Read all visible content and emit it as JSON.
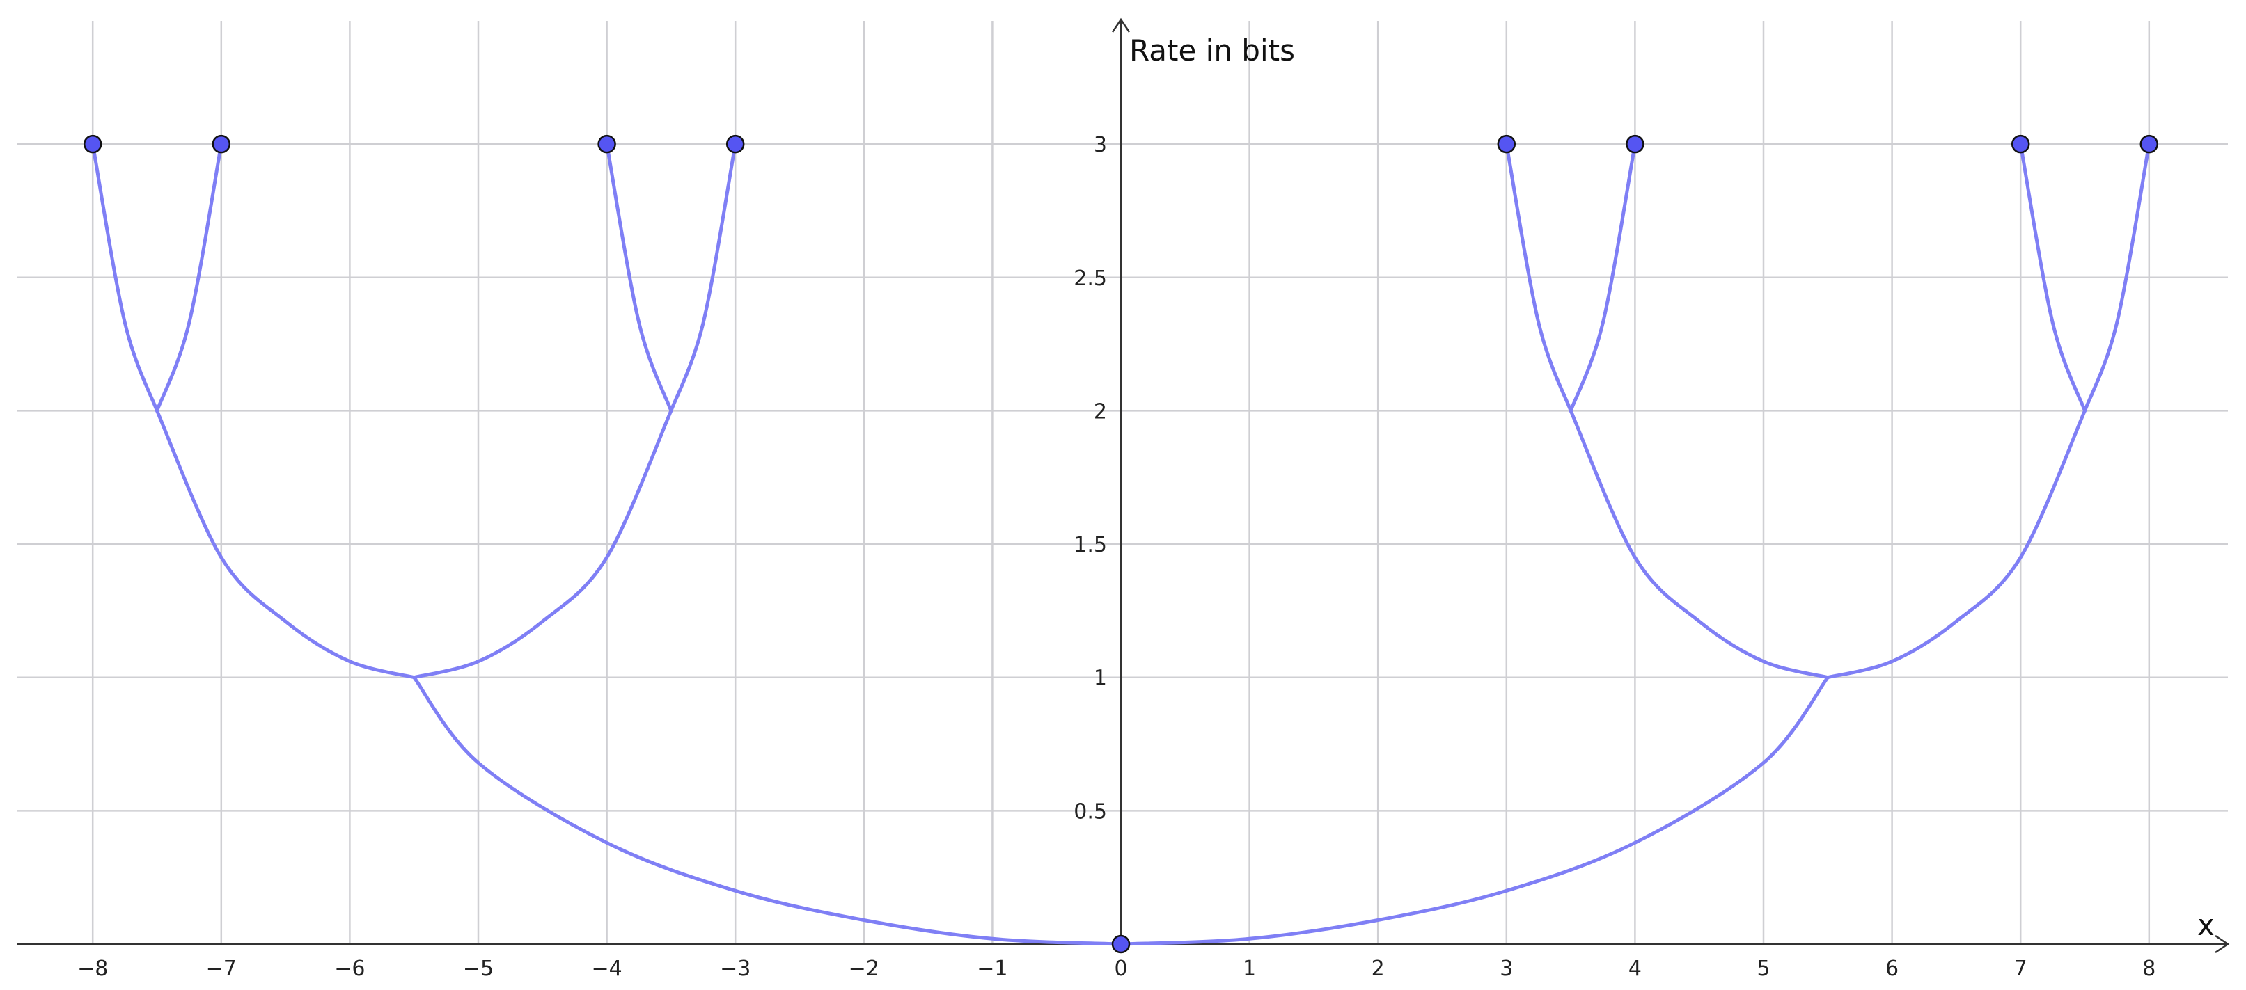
{
  "chart_data": {
    "type": "line",
    "title": "",
    "xlabel": "x",
    "ylabel": "Rate in bits",
    "xlim": [
      -8.6,
      8.6
    ],
    "ylim": [
      0,
      3.45
    ],
    "grid": true,
    "x_ticks": [
      -8,
      -7,
      -6,
      -5,
      -4,
      -3,
      -2,
      -1,
      0,
      1,
      2,
      3,
      4,
      5,
      6,
      7,
      8
    ],
    "x_tick_labels": [
      "−8",
      "−7",
      "−6",
      "−5",
      "−4",
      "−3",
      "−2",
      "−1",
      "0",
      "1",
      "2",
      "3",
      "4",
      "5",
      "6",
      "7",
      "8"
    ],
    "y_ticks": [
      0.5,
      1,
      1.5,
      2,
      2.5,
      3
    ],
    "y_tick_labels": [
      "0.5",
      "1",
      "1.5",
      "2",
      "2.5",
      "3"
    ],
    "series_color": "#7f7ff5",
    "point_color": "#5555f2",
    "points": [
      {
        "x": -8,
        "y": 3
      },
      {
        "x": -7,
        "y": 3
      },
      {
        "x": -4,
        "y": 3
      },
      {
        "x": -3,
        "y": 3
      },
      {
        "x": 3,
        "y": 3
      },
      {
        "x": 4,
        "y": 3
      },
      {
        "x": 7,
        "y": 3
      },
      {
        "x": 8,
        "y": 3
      },
      {
        "x": 0,
        "y": 0
      }
    ],
    "curves": [
      {
        "x": [
          0,
          -1,
          -2,
          -3,
          -4,
          -5,
          -5.5
        ],
        "y": [
          0,
          0.02,
          0.09,
          0.2,
          0.38,
          0.68,
          1
        ]
      },
      {
        "x": [
          0,
          1,
          2,
          3,
          4,
          5,
          5.5
        ],
        "y": [
          0,
          0.02,
          0.09,
          0.2,
          0.38,
          0.68,
          1
        ]
      },
      {
        "x": [
          -5.5,
          -6,
          -6.5,
          -7,
          -7.5
        ],
        "y": [
          1,
          1.06,
          1.21,
          1.45,
          2
        ]
      },
      {
        "x": [
          -5.5,
          -5,
          -4.5,
          -4,
          -3.5
        ],
        "y": [
          1,
          1.06,
          1.21,
          1.45,
          2
        ]
      },
      {
        "x": [
          5.5,
          5,
          4.5,
          4,
          3.5
        ],
        "y": [
          1,
          1.06,
          1.21,
          1.45,
          2
        ]
      },
      {
        "x": [
          5.5,
          6,
          6.5,
          7,
          7.5
        ],
        "y": [
          1,
          1.06,
          1.21,
          1.45,
          2
        ]
      },
      {
        "x": [
          -7.5,
          -7.75,
          -8
        ],
        "y": [
          2,
          2.33,
          3
        ]
      },
      {
        "x": [
          -7.5,
          -7.25,
          -7
        ],
        "y": [
          2,
          2.33,
          3
        ]
      },
      {
        "x": [
          -3.5,
          -3.75,
          -4
        ],
        "y": [
          2,
          2.33,
          3
        ]
      },
      {
        "x": [
          -3.5,
          -3.25,
          -3
        ],
        "y": [
          2,
          2.33,
          3
        ]
      },
      {
        "x": [
          3.5,
          3.25,
          3
        ],
        "y": [
          2,
          2.33,
          3
        ]
      },
      {
        "x": [
          3.5,
          3.75,
          4
        ],
        "y": [
          2,
          2.33,
          3
        ]
      },
      {
        "x": [
          7.5,
          7.25,
          7
        ],
        "y": [
          2,
          2.33,
          3
        ]
      },
      {
        "x": [
          7.5,
          7.75,
          8
        ],
        "y": [
          2,
          2.33,
          3
        ]
      }
    ]
  }
}
